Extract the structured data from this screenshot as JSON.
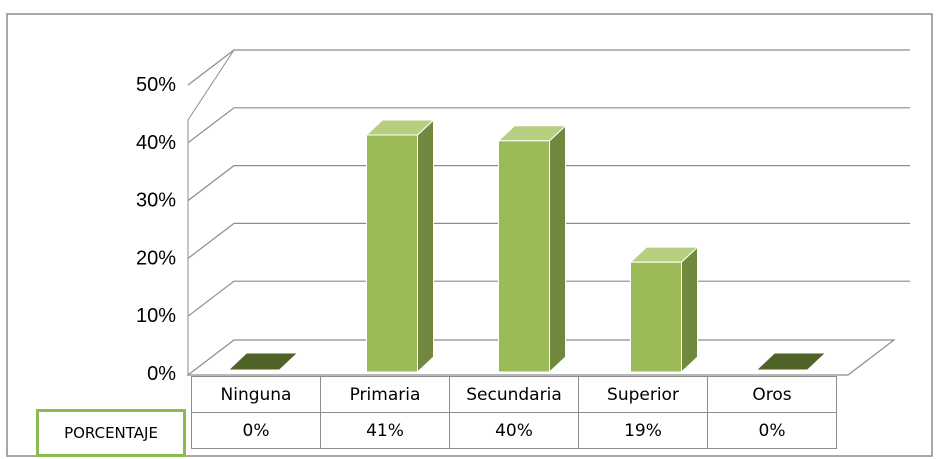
{
  "chart_data": {
    "type": "bar",
    "categories": [
      "Ninguna",
      "Primaria",
      "Secundaria",
      "Superior",
      "Oros"
    ],
    "series": [
      {
        "name": "PORCENTAJE",
        "values": [
          0,
          41,
          40,
          19,
          0
        ]
      }
    ],
    "data_labels": [
      "0%",
      "41%",
      "40%",
      "19%",
      "0%"
    ],
    "y_ticks": [
      "0%",
      "10%",
      "20%",
      "30%",
      "40%",
      "50%"
    ],
    "ylim": [
      0,
      50
    ],
    "grid": true,
    "style": "3d-column",
    "data_table": true,
    "colors": {
      "bar_front": "#9bbb59",
      "bar_side": "#71893f",
      "bar_top": "#b5cf7e",
      "legend_border": "#8cba52"
    }
  }
}
